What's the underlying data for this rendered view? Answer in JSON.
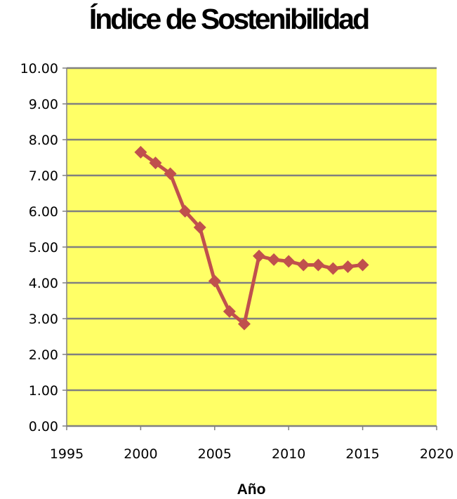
{
  "chart_data": {
    "type": "line",
    "title": "Índice de Sostenibilidad",
    "xlabel": "Año",
    "ylabel": "",
    "xlim": [
      1995,
      2020
    ],
    "ylim": [
      0,
      10
    ],
    "x_ticks": [
      "1995",
      "2000",
      "2005",
      "2010",
      "2015",
      "2020"
    ],
    "y_ticks": [
      "0.00",
      "1.00",
      "2.00",
      "3.00",
      "4.00",
      "5.00",
      "6.00",
      "7.00",
      "8.00",
      "9.00",
      "10.00"
    ],
    "grid": true,
    "legend": "none",
    "colors": {
      "plot_background": "#ffff66",
      "line": "#c0504d",
      "gridline": "#808080"
    },
    "series": [
      {
        "x": [
          2000,
          2001,
          2002,
          2003,
          2004,
          2005,
          2006,
          2007,
          2008,
          2009,
          2010,
          2011,
          2012,
          2013,
          2014,
          2015
        ],
        "values": [
          7.65,
          7.35,
          7.05,
          6.0,
          5.55,
          4.05,
          3.2,
          2.85,
          4.75,
          4.65,
          4.6,
          4.5,
          4.5,
          4.4,
          4.45,
          4.5
        ]
      }
    ]
  }
}
